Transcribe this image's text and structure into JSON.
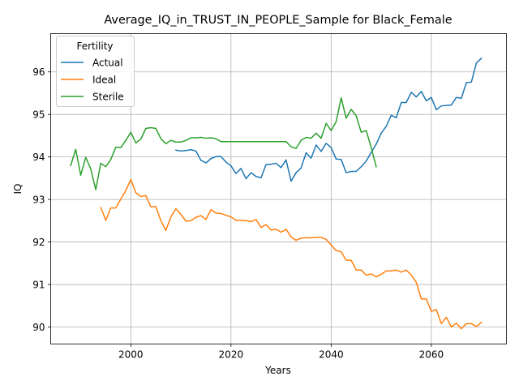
{
  "chart_data": {
    "type": "line",
    "title": "Average_IQ_in_TRUST_IN_PEOPLE_Sample for Black_Female",
    "xlabel": "Years",
    "ylabel": "IQ",
    "xlim": [
      1984,
      2075
    ],
    "ylim": [
      89.6,
      96.9
    ],
    "xticks": [
      2000,
      2020,
      2040,
      2060
    ],
    "yticks": [
      90,
      91,
      92,
      93,
      94,
      95,
      96
    ],
    "grid": true,
    "legend": {
      "title": "Fertility",
      "placement": "top-left"
    },
    "series": [
      {
        "name": "Actual",
        "color": "#1f77b4",
        "x": [
          2009,
          2010,
          2011,
          2012,
          2013,
          2014,
          2015,
          2016,
          2017,
          2018,
          2019,
          2020,
          2021,
          2022,
          2023,
          2024,
          2025,
          2026,
          2027,
          2028,
          2029,
          2030,
          2031,
          2032,
          2033,
          2034,
          2035,
          2036,
          2037,
          2038,
          2039,
          2040,
          2041,
          2042,
          2043,
          2044,
          2045,
          2046,
          2047,
          2048,
          2049,
          2050,
          2051,
          2052,
          2053,
          2054,
          2055,
          2056,
          2057,
          2058,
          2059,
          2060,
          2061,
          2062,
          2063,
          2064,
          2065,
          2066,
          2067,
          2068,
          2069,
          2070
        ],
        "y": [
          94.16,
          94.14,
          94.15,
          94.17,
          94.14,
          93.92,
          93.86,
          93.96,
          94.01,
          94.01,
          93.88,
          93.79,
          93.61,
          93.73,
          93.49,
          93.63,
          93.54,
          93.51,
          93.82,
          93.83,
          93.85,
          93.75,
          93.93,
          93.43,
          93.63,
          93.74,
          94.1,
          93.97,
          94.28,
          94.13,
          94.32,
          94.22,
          93.95,
          93.94,
          93.63,
          93.66,
          93.66,
          93.77,
          93.9,
          94.11,
          94.3,
          94.56,
          94.72,
          94.98,
          94.92,
          95.28,
          95.28,
          95.52,
          95.41,
          95.54,
          95.32,
          95.4,
          95.11,
          95.2,
          95.21,
          95.22,
          95.4,
          95.38,
          95.75,
          95.76,
          96.21,
          96.32
        ]
      },
      {
        "name": "Ideal",
        "color": "#ff7f0e",
        "x": [
          1994,
          1995,
          1996,
          1997,
          1998,
          1999,
          2000,
          2001,
          2002,
          2003,
          2004,
          2005,
          2006,
          2007,
          2008,
          2009,
          2010,
          2011,
          2012,
          2013,
          2014,
          2015,
          2016,
          2017,
          2018,
          2019,
          2020,
          2021,
          2022,
          2023,
          2024,
          2025,
          2026,
          2027,
          2028,
          2029,
          2030,
          2031,
          2032,
          2033,
          2034,
          2035,
          2036,
          2037,
          2038,
          2039,
          2040,
          2041,
          2042,
          2043,
          2044,
          2045,
          2046,
          2047,
          2048,
          2049,
          2050,
          2051,
          2052,
          2053,
          2054,
          2055,
          2056,
          2057,
          2058,
          2059,
          2060,
          2061,
          2062,
          2063,
          2064,
          2065,
          2066,
          2067,
          2068,
          2069,
          2070
        ],
        "y": [
          92.81,
          92.51,
          92.8,
          92.8,
          93.01,
          93.21,
          93.47,
          93.16,
          93.07,
          93.09,
          92.83,
          92.83,
          92.5,
          92.27,
          92.59,
          92.78,
          92.65,
          92.49,
          92.5,
          92.58,
          92.62,
          92.53,
          92.76,
          92.68,
          92.67,
          92.63,
          92.59,
          92.51,
          92.51,
          92.5,
          92.48,
          92.53,
          92.34,
          92.41,
          92.28,
          92.3,
          92.23,
          92.3,
          92.12,
          92.04,
          92.09,
          92.1,
          92.1,
          92.11,
          92.11,
          92.06,
          91.93,
          91.8,
          91.77,
          91.57,
          91.57,
          91.34,
          91.34,
          91.22,
          91.25,
          91.18,
          91.24,
          91.32,
          91.32,
          91.34,
          91.29,
          91.34,
          91.22,
          91.05,
          90.66,
          90.66,
          90.37,
          90.41,
          90.08,
          90.23,
          90.0,
          90.09,
          89.96,
          90.08,
          90.08,
          90.01,
          90.11
        ]
      },
      {
        "name": "Sterile",
        "color": "#2ca02c",
        "x": [
          1988,
          1989,
          1990,
          1991,
          1992,
          1993,
          1994,
          1995,
          1996,
          1997,
          1998,
          1999,
          2000,
          2001,
          2002,
          2003,
          2004,
          2005,
          2006,
          2007,
          2008,
          2009,
          2010,
          2011,
          2012,
          2013,
          2014,
          2015,
          2016,
          2017,
          2018,
          2019,
          2020,
          2021,
          2022,
          2023,
          2024,
          2025,
          2026,
          2027,
          2028,
          2029,
          2030,
          2031,
          2032,
          2033,
          2034,
          2035,
          2036,
          2037,
          2038,
          2039,
          2040,
          2041,
          2042,
          2043,
          2044,
          2045,
          2046,
          2047,
          2048,
          2049
        ],
        "y": [
          93.8,
          94.18,
          93.57,
          93.99,
          93.72,
          93.23,
          93.85,
          93.77,
          93.94,
          94.23,
          94.22,
          94.39,
          94.58,
          94.33,
          94.42,
          94.67,
          94.69,
          94.67,
          94.43,
          94.31,
          94.39,
          94.35,
          94.35,
          94.39,
          94.45,
          94.45,
          94.46,
          94.44,
          94.45,
          94.43,
          94.36,
          94.36,
          94.36,
          94.36,
          94.36,
          94.36,
          94.36,
          94.36,
          94.36,
          94.36,
          94.36,
          94.36,
          94.36,
          94.36,
          94.24,
          94.2,
          94.39,
          94.46,
          94.44,
          94.56,
          94.44,
          94.79,
          94.62,
          94.83,
          95.39,
          94.91,
          95.12,
          94.97,
          94.58,
          94.62,
          94.22,
          93.77
        ]
      }
    ]
  }
}
